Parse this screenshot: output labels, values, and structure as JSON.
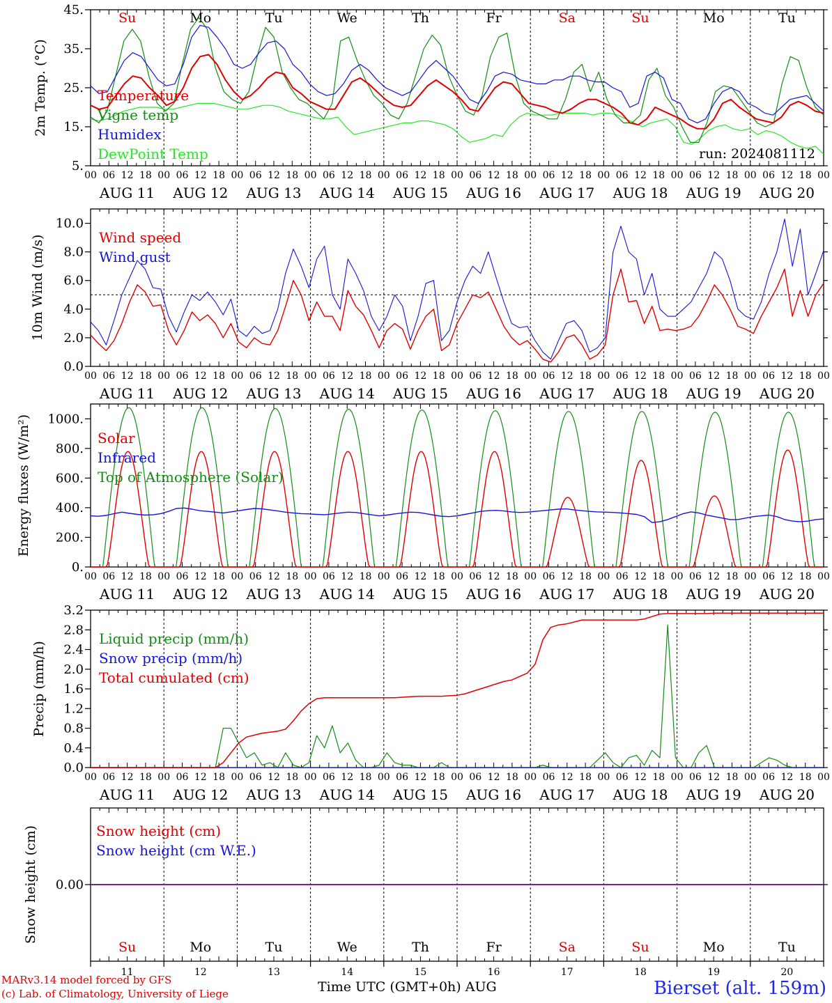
{
  "chart_data": [
    {
      "type": "line",
      "ylabel": "2m Temp. (°C)",
      "ylim": [
        5,
        45
      ],
      "y_ticks": [
        "5.",
        "15.",
        "25.",
        "35.",
        "45."
      ],
      "day_labels": [
        "Su",
        "Mo",
        "Tu",
        "We",
        "Th",
        "Fr",
        "Sa",
        "Su",
        "Mo",
        "Tu"
      ],
      "annotation": "run: 2024081112",
      "series": [
        {
          "name": "Temperature",
          "color": "#e00000",
          "values": [
            20.5,
            19.5,
            20,
            23,
            26,
            28,
            27.5,
            25,
            23,
            20.5,
            21.5,
            25,
            30,
            33,
            33.5,
            31,
            27,
            24,
            22,
            23,
            25,
            27.5,
            29,
            28.5,
            25,
            23.5,
            21.5,
            20.5,
            19.5,
            19.5,
            23,
            26.5,
            27.5,
            26,
            24,
            22,
            20.5,
            20,
            20.5,
            23,
            25.5,
            27,
            25.5,
            24,
            22,
            19.5,
            19,
            22,
            25,
            26.5,
            26,
            23.5,
            21,
            20.5,
            20,
            19,
            18.5,
            19.5,
            21,
            22,
            22,
            21,
            20,
            18.5,
            16,
            15.5,
            17,
            20,
            19,
            18,
            17,
            15.5,
            14.5,
            14.5,
            17,
            21,
            22,
            20,
            18.5,
            17,
            16.5,
            16,
            17.5,
            20.5,
            21.5,
            20.5,
            19,
            18.5
          ]
        },
        {
          "name": "Vigne temp",
          "color": "#148c14",
          "values": [
            17.5,
            16,
            19,
            28,
            37,
            40,
            37,
            28,
            21,
            19,
            21,
            31,
            40,
            43,
            40,
            30,
            24,
            22,
            21,
            24,
            33,
            40.5,
            38,
            29,
            25,
            22,
            21,
            19,
            17,
            21,
            37,
            38,
            32,
            27,
            23,
            21,
            18,
            17,
            21,
            28,
            35,
            38.5,
            36,
            28,
            23,
            19,
            18,
            23,
            33,
            38,
            39,
            28,
            21,
            19,
            18,
            17,
            17,
            22,
            29,
            31,
            24,
            29,
            22,
            18,
            16,
            16,
            18,
            27,
            30,
            23,
            20,
            15,
            11,
            11,
            16,
            24,
            25.5,
            25,
            22,
            19,
            16,
            15,
            16,
            26,
            33,
            32,
            25,
            20,
            18
          ]
        },
        {
          "name": "Humidex",
          "color": "#1414dc",
          "values": [
            25.5,
            23.5,
            24,
            28,
            32,
            34,
            33,
            30,
            27,
            25.5,
            26,
            31,
            38,
            41,
            40.5,
            38,
            35,
            31,
            30,
            31,
            34,
            36.5,
            37,
            35,
            31,
            29,
            26,
            24,
            23,
            23.5,
            26,
            29.5,
            31,
            29.5,
            27,
            25,
            24,
            23,
            24,
            27,
            30,
            32,
            30,
            28,
            25,
            22,
            21,
            24,
            28,
            29,
            28.5,
            27,
            26.5,
            26,
            26,
            27,
            27,
            28,
            28,
            27,
            26.5,
            26.5,
            25,
            24,
            20,
            21,
            28,
            29,
            27.5,
            22,
            21,
            17,
            16,
            17,
            21,
            24,
            25,
            24,
            21,
            20,
            18.5,
            18,
            20,
            22,
            22.5,
            23,
            21,
            19
          ]
        },
        {
          "name": "DewPoint Temp",
          "color": "#28e628",
          "values": [
            17,
            16.5,
            17,
            18,
            19,
            19.5,
            20,
            20,
            20,
            19.5,
            19.5,
            20,
            20.5,
            21,
            21,
            21,
            20.5,
            20,
            19.5,
            19.5,
            20,
            20.5,
            20.5,
            20,
            19,
            18.5,
            18,
            17.5,
            17,
            17,
            17.5,
            15,
            13,
            13.5,
            14,
            14.5,
            15,
            15.5,
            16,
            16,
            16.5,
            16.5,
            16,
            15.5,
            14.5,
            12.5,
            11,
            11.5,
            12,
            13,
            12.5,
            15.5,
            17.5,
            18.5,
            18,
            18,
            18,
            18.5,
            18.5,
            18.5,
            18.5,
            18,
            18.5,
            18.5,
            18,
            17,
            16,
            15,
            16,
            16.5,
            17,
            15,
            11,
            10.5,
            12,
            14,
            15,
            15.5,
            14.5,
            14,
            14.5,
            13,
            14,
            13.5,
            12.5,
            11,
            10,
            9.5,
            10,
            8
          ]
        }
      ]
    },
    {
      "type": "line",
      "ylabel": "10m Wind (m/s)",
      "ylim": [
        0,
        11
      ],
      "y_ticks": [
        "0.0",
        "2.0",
        "4.0",
        "6.0",
        "8.0",
        "10.0"
      ],
      "reference_line": 5.0,
      "series": [
        {
          "name": "Wind speed",
          "color": "#e00000",
          "values": [
            2.2,
            1.6,
            1.1,
            1.8,
            3.0,
            4.5,
            5.7,
            5.2,
            4.2,
            4.3,
            2.5,
            1.5,
            2.5,
            3.8,
            3.2,
            3.6,
            3.0,
            2.0,
            3.0,
            1.7,
            1.3,
            2.0,
            1.6,
            1.5,
            2.5,
            4.2,
            6.0,
            5.0,
            3.2,
            4.5,
            3.5,
            3.5,
            2.5,
            5.3,
            4.2,
            3.6,
            2.5,
            1.3,
            2.5,
            3.0,
            2.6,
            1.2,
            2.5,
            3.5,
            4.0,
            1.1,
            1.5,
            3.0,
            4.0,
            5.0,
            4.8,
            5.2,
            4.0,
            2.8,
            2.0,
            1.5,
            1.8,
            1.2,
            0.5,
            0.3,
            1.0,
            2.0,
            2.2,
            1.5,
            0.5,
            0.8,
            1.5,
            5.0,
            6.8,
            4.5,
            4.6,
            3.0,
            4.2,
            2.5,
            2.6,
            2.5,
            2.6,
            2.8,
            3.5,
            4.5,
            5.7,
            5.0,
            4.0,
            2.8,
            2.6,
            2.3,
            3.5,
            4.5,
            5.5,
            6.8,
            3.5,
            5.3,
            3.5,
            5.0,
            5.8
          ]
        },
        {
          "name": "Wind gust",
          "color": "#1414dc",
          "values": [
            3.1,
            2.5,
            1.5,
            3.2,
            5.0,
            6.2,
            7.4,
            6.8,
            5.5,
            5.4,
            3.5,
            2.4,
            3.8,
            5.0,
            4.6,
            5.2,
            4.5,
            3.6,
            4.7,
            2.5,
            2.1,
            2.8,
            2.3,
            2.5,
            4.0,
            6.5,
            8.2,
            7.0,
            5.5,
            7.5,
            8.4,
            5.0,
            4.0,
            7.5,
            6.5,
            5.3,
            3.5,
            2.5,
            3.5,
            5.0,
            4.2,
            1.8,
            3.5,
            5.8,
            6.0,
            1.8,
            2.5,
            4.5,
            6.0,
            7.0,
            6.5,
            8.0,
            6.2,
            4.5,
            3.0,
            2.7,
            2.8,
            1.8,
            1.0,
            0.5,
            1.8,
            3.0,
            3.2,
            2.5,
            1.0,
            1.3,
            2.0,
            8.0,
            9.8,
            8.0,
            7.5,
            5.0,
            6.5,
            4.0,
            3.5,
            3.5,
            4.0,
            4.5,
            5.5,
            6.5,
            8.0,
            7.5,
            6.0,
            4.0,
            3.5,
            3.3,
            4.5,
            6.5,
            8.0,
            10.3,
            7.0,
            9.6,
            5.0,
            6.5,
            8.1
          ]
        }
      ]
    },
    {
      "type": "line",
      "ylabel": "Energy fluxes (W/m²)",
      "ylim": [
        0,
        1100
      ],
      "y_ticks": [
        "0.",
        "200.",
        "400.",
        "600.",
        "800.",
        "1000."
      ],
      "day_peaks": [
        {
          "solar": 780,
          "toa": 1075
        },
        {
          "solar": 780,
          "toa": 1075
        },
        {
          "solar": 780,
          "toa": 1070
        },
        {
          "solar": 780,
          "toa": 1065
        },
        {
          "solar": 780,
          "toa": 1060
        },
        {
          "solar": 780,
          "toa": 1055
        },
        {
          "solar": 470,
          "toa": 1050
        },
        {
          "solar": 720,
          "toa": 1050
        },
        {
          "solar": 480,
          "toa": 1045
        },
        {
          "solar": 790,
          "toa": 1045
        }
      ],
      "infrared": [
        345,
        342,
        348,
        360,
        370,
        362,
        355,
        350,
        352,
        360,
        375,
        395,
        398,
        390,
        380,
        375,
        370,
        365,
        372,
        380,
        388,
        395,
        392,
        385,
        378,
        370,
        365,
        360,
        358,
        355,
        352,
        358,
        365,
        370,
        368,
        360,
        352,
        345,
        350,
        358,
        365,
        370,
        368,
        360,
        350,
        342,
        340,
        345,
        355,
        365,
        375,
        380,
        382,
        378,
        372,
        368,
        370,
        375,
        380,
        385,
        390,
        392,
        385,
        380,
        375,
        372,
        370,
        368,
        365,
        360,
        355,
        340,
        300,
        305,
        320,
        340,
        360,
        372,
        365,
        350,
        340,
        330,
        320,
        320,
        330,
        340,
        345,
        350,
        340,
        320,
        310,
        305,
        310,
        320,
        325
      ]
    },
    {
      "type": "line",
      "ylabel": "Precip (mm/h)",
      "ylim": [
        0,
        3.2
      ],
      "y_ticks": [
        "0.0",
        "0.4",
        "0.8",
        "1.2",
        "1.6",
        "2.0",
        "2.4",
        "2.8",
        "3.2"
      ],
      "series": [
        {
          "name": "Liquid precip (mm/h)",
          "color": "#148c14",
          "values": [
            0,
            0,
            0,
            0,
            0,
            0,
            0,
            0,
            0,
            0,
            0,
            0,
            0,
            0,
            0,
            0,
            0,
            0.8,
            0.8,
            0.5,
            0.2,
            0.3,
            0.05,
            0.1,
            0,
            0.3,
            0.05,
            0,
            0.1,
            0.65,
            0.4,
            0.85,
            0.3,
            0.5,
            0.15,
            0,
            0,
            0.05,
            0.3,
            0.1,
            0.05,
            0.05,
            0,
            0,
            0,
            0.1,
            0,
            0,
            0,
            0,
            0,
            0,
            0,
            0,
            0,
            0,
            0,
            0,
            0.05,
            0,
            0,
            0,
            0,
            0,
            0,
            0.15,
            0.3,
            0.1,
            0,
            0.2,
            0.25,
            0.05,
            0.35,
            0.2,
            2.9,
            0.2,
            0,
            0,
            0.3,
            0.45,
            0,
            0,
            0,
            0,
            0,
            0,
            0.1,
            0.2,
            0.15,
            0.05,
            0,
            0,
            0,
            0,
            0
          ]
        },
        {
          "name": "Snow precip (mm/h)",
          "color": "#1414dc",
          "values": [
            0,
            0,
            0,
            0,
            0,
            0,
            0,
            0,
            0,
            0,
            0,
            0,
            0,
            0,
            0,
            0,
            0,
            0,
            0,
            0,
            0,
            0,
            0,
            0,
            0,
            0,
            0,
            0,
            0,
            0,
            0,
            0,
            0,
            0,
            0,
            0,
            0,
            0,
            0,
            0,
            0,
            0,
            0,
            0,
            0,
            0,
            0,
            0,
            0,
            0,
            0,
            0,
            0,
            0,
            0,
            0,
            0,
            0,
            0,
            0,
            0,
            0,
            0,
            0,
            0,
            0,
            0,
            0,
            0,
            0,
            0,
            0,
            0,
            0,
            0,
            0,
            0,
            0,
            0,
            0,
            0,
            0,
            0,
            0,
            0,
            0,
            0,
            0,
            0,
            0,
            0,
            0,
            0,
            0,
            0
          ]
        },
        {
          "name": "Total cumulated (cm)",
          "color": "#e00000",
          "values": [
            0,
            0,
            0,
            0,
            0,
            0,
            0,
            0,
            0,
            0,
            0,
            0,
            0,
            0,
            0,
            0,
            0,
            0.1,
            0.3,
            0.5,
            0.62,
            0.66,
            0.7,
            0.72,
            0.74,
            0.78,
            0.95,
            1.15,
            1.3,
            1.4,
            1.42,
            1.42,
            1.42,
            1.42,
            1.42,
            1.42,
            1.42,
            1.42,
            1.42,
            1.42,
            1.43,
            1.44,
            1.45,
            1.45,
            1.45,
            1.45,
            1.46,
            1.47,
            1.5,
            1.55,
            1.6,
            1.65,
            1.7,
            1.75,
            1.78,
            1.85,
            1.92,
            2.1,
            2.6,
            2.85,
            2.9,
            2.92,
            2.96,
            3.0,
            3.0,
            3.0,
            3.0,
            3.0,
            3.0,
            3.0,
            3.0,
            3.02,
            3.07,
            3.12,
            3.13,
            3.13,
            3.13,
            3.13,
            3.13,
            3.13,
            3.14,
            3.14,
            3.14,
            3.14,
            3.14,
            3.14,
            3.14,
            3.14,
            3.14,
            3.14,
            3.14,
            3.14,
            3.14,
            3.14,
            3.14
          ]
        }
      ]
    },
    {
      "type": "line",
      "ylabel": "Snow height (cm)",
      "y_ticks": [
        "0.00"
      ],
      "series": [
        {
          "name": "Snow height (cm)",
          "color": "#e00000",
          "values": [
            0,
            0
          ]
        },
        {
          "name": "Snow height (cm W.E.)",
          "color": "#1414dc",
          "values": [
            0,
            0
          ]
        }
      ],
      "day_labels": [
        "Su",
        "Mo",
        "Tu",
        "We",
        "Th",
        "Fr",
        "Sa",
        "Su",
        "Mo",
        "Tu"
      ],
      "day_numbers": [
        "11",
        "12",
        "13",
        "14",
        "15",
        "16",
        "17",
        "18",
        "19",
        "20"
      ]
    }
  ],
  "hour_ticks": [
    "00",
    "06",
    "12",
    "18"
  ],
  "date_labels": [
    "AUG 11",
    "AUG 12",
    "AUG 13",
    "AUG 14",
    "AUG 15",
    "AUG 16",
    "AUG 17",
    "AUG 18",
    "AUG 19",
    "AUG 20"
  ],
  "weekend_color": "#e00000",
  "footer": {
    "credit_line1": "MARv3.14 model forced by GFS",
    "credit_line2": "(c) Lab. of Climatology, University of Liege",
    "xlabel": "Time UTC (GMT+0h) AUG",
    "station": "Bierset (alt. 159m)"
  }
}
